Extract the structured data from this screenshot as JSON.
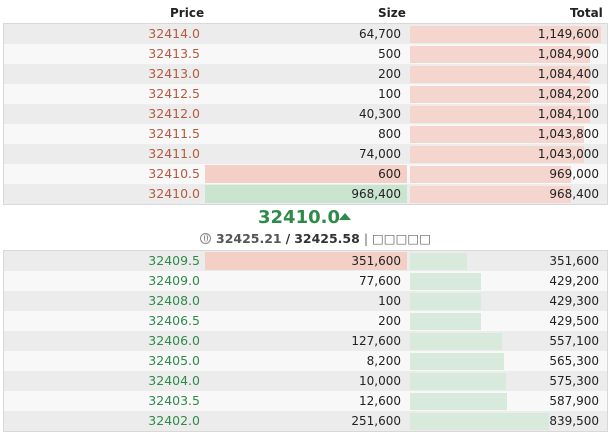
{
  "header": {
    "price": "Price",
    "size": "Size",
    "total": "Total"
  },
  "colors": {
    "ask_price": "#b55a3e",
    "bid_price": "#2f8a4a",
    "ask_bar": "#f5d6cf",
    "bid_bar": "#d8eadb",
    "size_highlight_red": "#f3cfc6",
    "size_highlight_green": "#c9e4cf"
  },
  "asks": [
    {
      "price": "32414.0",
      "size": "64,700",
      "total": "1,149,600",
      "total_fraction": 1.0
    },
    {
      "price": "32413.5",
      "size": "500",
      "total": "1,084,900",
      "total_fraction": 0.945
    },
    {
      "price": "32413.0",
      "size": "200",
      "total": "1,084,400",
      "total_fraction": 0.944
    },
    {
      "price": "32412.5",
      "size": "100",
      "total": "1,084,200",
      "total_fraction": 0.944
    },
    {
      "price": "32412.0",
      "size": "40,300",
      "total": "1,084,100",
      "total_fraction": 0.944
    },
    {
      "price": "32411.5",
      "size": "800",
      "total": "1,043,800",
      "total_fraction": 0.909
    },
    {
      "price": "32411.0",
      "size": "74,000",
      "total": "1,043,000",
      "total_fraction": 0.909
    },
    {
      "price": "32410.5",
      "size": "600",
      "total": "969,000",
      "total_fraction": 0.844,
      "size_highlight": "red"
    },
    {
      "price": "32410.0",
      "size": "968,400",
      "total": "968,400",
      "total_fraction": 0.843,
      "size_highlight": "green"
    }
  ],
  "mid": {
    "last_price": "32410.0",
    "direction": "up",
    "index_price": "32425.21",
    "separator": "/",
    "mark_price": "32425.58",
    "trailing": "| □□□□□",
    "icon": "globe-icon"
  },
  "bids": [
    {
      "price": "32409.5",
      "size": "351,600",
      "total": "351,600",
      "total_fraction": 0.3,
      "size_highlight": "red"
    },
    {
      "price": "32409.0",
      "size": "77,600",
      "total": "429,200",
      "total_fraction": 0.37
    },
    {
      "price": "32408.0",
      "size": "100",
      "total": "429,300",
      "total_fraction": 0.37
    },
    {
      "price": "32406.5",
      "size": "200",
      "total": "429,500",
      "total_fraction": 0.37
    },
    {
      "price": "32406.0",
      "size": "127,600",
      "total": "557,100",
      "total_fraction": 0.48
    },
    {
      "price": "32405.0",
      "size": "8,200",
      "total": "565,300",
      "total_fraction": 0.49
    },
    {
      "price": "32404.0",
      "size": "10,000",
      "total": "575,300",
      "total_fraction": 0.5
    },
    {
      "price": "32403.5",
      "size": "12,600",
      "total": "587,900",
      "total_fraction": 0.51
    },
    {
      "price": "32402.0",
      "size": "251,600",
      "total": "839,500",
      "total_fraction": 0.73
    }
  ]
}
